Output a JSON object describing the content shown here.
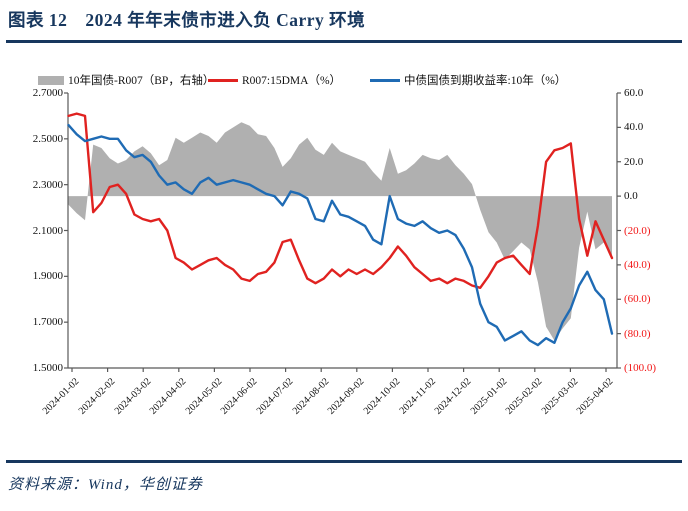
{
  "title": "图表 12　2024 年年末债市进入负 Carry 环境",
  "source": "资料来源：Wind，华创证券",
  "colors": {
    "accent_navy": "#17375e",
    "gray_series": "#b0b0b0",
    "red_series": "#e02220",
    "blue_series": "#1f6bb4",
    "negative_tick_red": "#f21616",
    "axis_line": "#595959"
  },
  "legend": [
    {
      "label": "10年国债-R007（BP，右轴）",
      "swatch": "area",
      "color": "#b0b0b0"
    },
    {
      "label": "R007:15DMA（%）",
      "swatch": "line",
      "color": "#e02220"
    },
    {
      "label": "中债国债到期收益率:10年（%）",
      "swatch": "line",
      "color": "#1f6bb4"
    }
  ],
  "chart_data": {
    "type": "line",
    "title": "",
    "xlabel": "",
    "ylabel": "",
    "legend_position": "top",
    "grid": false,
    "left_axis": {
      "min": 1.5,
      "max": 2.7,
      "tick_values": [
        2.7,
        2.5,
        2.3,
        2.1,
        1.9,
        1.7,
        1.5
      ],
      "tick_labels": [
        "2.7000",
        "2.5000",
        "2.3000",
        "2.1000",
        "1.9000",
        "1.7000",
        "1.5000"
      ]
    },
    "right_axis": {
      "min": -100,
      "max": 60,
      "tick_values": [
        60,
        40,
        20,
        0,
        -20,
        -40,
        -60,
        -80,
        -100
      ],
      "tick_labels": [
        "60.0",
        "40.0",
        "20.0",
        "0.0",
        "(20.0)",
        "(40.0)",
        "(60.0)",
        "(80.0)",
        "(100.0)"
      ]
    },
    "x_tick_labels": [
      "2024-01-02",
      "2024-02-02",
      "2024-03-02",
      "2024-04-02",
      "2024-05-02",
      "2024-06-02",
      "2024-07-02",
      "2024-08-02",
      "2024-09-02",
      "2024-10-02",
      "2024-11-02",
      "2024-12-02",
      "2025-01-02",
      "2025-02-02",
      "2025-03-02",
      "2025-04-02"
    ],
    "x_dates": [
      "2024-01-02",
      "2024-01-09",
      "2024-01-16",
      "2024-01-23",
      "2024-01-30",
      "2024-02-06",
      "2024-02-13",
      "2024-02-20",
      "2024-02-27",
      "2024-03-05",
      "2024-03-12",
      "2024-03-19",
      "2024-03-26",
      "2024-04-02",
      "2024-04-09",
      "2024-04-16",
      "2024-04-23",
      "2024-04-30",
      "2024-05-07",
      "2024-05-14",
      "2024-05-21",
      "2024-05-28",
      "2024-06-04",
      "2024-06-11",
      "2024-06-18",
      "2024-06-25",
      "2024-07-02",
      "2024-07-09",
      "2024-07-16",
      "2024-07-23",
      "2024-07-30",
      "2024-08-06",
      "2024-08-13",
      "2024-08-20",
      "2024-08-27",
      "2024-09-03",
      "2024-09-10",
      "2024-09-17",
      "2024-09-24",
      "2024-10-01",
      "2024-10-08",
      "2024-10-15",
      "2024-10-22",
      "2024-10-29",
      "2024-11-05",
      "2024-11-12",
      "2024-11-19",
      "2024-11-26",
      "2024-12-03",
      "2024-12-10",
      "2024-12-17",
      "2024-12-24",
      "2024-12-31",
      "2025-01-07",
      "2025-01-14",
      "2025-01-21",
      "2025-01-28",
      "2025-02-04",
      "2025-02-11",
      "2025-02-18",
      "2025-02-25",
      "2025-03-04",
      "2025-03-11",
      "2025-03-18",
      "2025-03-25",
      "2025-04-01",
      "2025-04-08"
    ],
    "series": [
      {
        "name": "10年国债-R007（BP，右轴）",
        "type": "area",
        "axis": "right",
        "color": "#b0b0b0",
        "values": [
          -5,
          -10,
          -14,
          30,
          28,
          22,
          19,
          21,
          26,
          29,
          25,
          18,
          21,
          34,
          31,
          34,
          37,
          35,
          31,
          37,
          40,
          43,
          41,
          36,
          35,
          28,
          17,
          22,
          30,
          34,
          27,
          24,
          31,
          26,
          24,
          22,
          20,
          14,
          9,
          28,
          13,
          15,
          19,
          24,
          22,
          21,
          24,
          18,
          13,
          7,
          -8,
          -21,
          -27,
          -37,
          -32,
          -27,
          -31,
          -50,
          -76,
          -84,
          -77,
          -71,
          -30,
          -9,
          -31,
          -27,
          -35
        ]
      },
      {
        "name": "R007:15DMA（%）",
        "type": "line",
        "axis": "left",
        "color": "#e02220",
        "values": [
          2.6,
          2.61,
          2.6,
          2.18,
          2.22,
          2.29,
          2.3,
          2.26,
          2.17,
          2.15,
          2.14,
          2.15,
          2.1,
          1.98,
          1.96,
          1.93,
          1.95,
          1.97,
          1.98,
          1.95,
          1.93,
          1.89,
          1.88,
          1.91,
          1.92,
          1.96,
          2.05,
          2.06,
          1.97,
          1.89,
          1.87,
          1.89,
          1.93,
          1.9,
          1.93,
          1.91,
          1.93,
          1.91,
          1.94,
          1.98,
          2.03,
          1.99,
          1.94,
          1.91,
          1.88,
          1.89,
          1.87,
          1.89,
          1.88,
          1.86,
          1.85,
          1.9,
          1.96,
          1.98,
          1.99,
          1.95,
          1.91,
          2.12,
          2.4,
          2.45,
          2.46,
          2.48,
          2.15,
          1.99,
          2.14,
          2.06,
          1.98
        ]
      },
      {
        "name": "中债国债到期收益率:10年（%）",
        "type": "line",
        "axis": "left",
        "color": "#1f6bb4",
        "values": [
          2.56,
          2.52,
          2.49,
          2.5,
          2.51,
          2.5,
          2.5,
          2.45,
          2.42,
          2.43,
          2.4,
          2.34,
          2.3,
          2.31,
          2.28,
          2.26,
          2.31,
          2.33,
          2.3,
          2.31,
          2.32,
          2.31,
          2.3,
          2.28,
          2.26,
          2.25,
          2.21,
          2.27,
          2.26,
          2.24,
          2.15,
          2.14,
          2.23,
          2.17,
          2.16,
          2.14,
          2.12,
          2.06,
          2.04,
          2.25,
          2.15,
          2.13,
          2.12,
          2.14,
          2.11,
          2.09,
          2.1,
          2.08,
          2.02,
          1.94,
          1.78,
          1.7,
          1.68,
          1.62,
          1.64,
          1.66,
          1.62,
          1.6,
          1.63,
          1.61,
          1.7,
          1.76,
          1.86,
          1.92,
          1.84,
          1.8,
          1.65
        ]
      }
    ]
  }
}
